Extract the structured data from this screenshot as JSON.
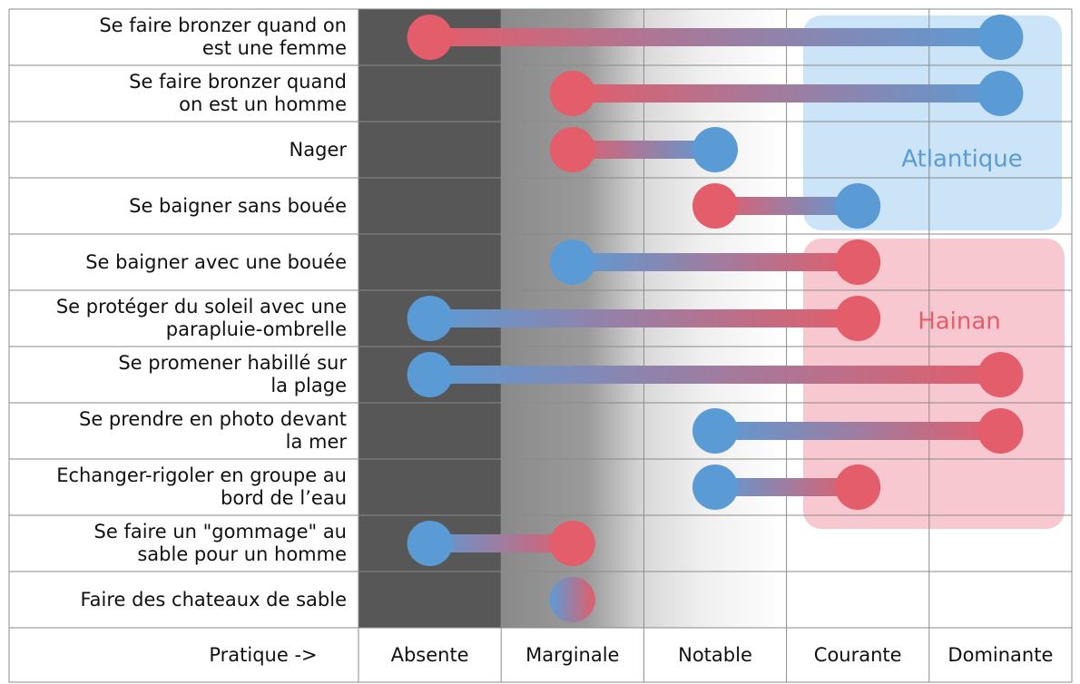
{
  "chart_data": {
    "type": "dumbbell",
    "x_label": "Pratique ->",
    "levels": [
      "Absente",
      "Marginale",
      "Notable",
      "Courante",
      "Dominante"
    ],
    "categories": [
      "Se faire bronzer quand on\nest une femme",
      "Se faire bronzer quand\non est un homme",
      "Nager",
      "Se baigner sans bouée",
      "Se baigner avec une bouée",
      "Se protéger du soleil avec une\nparapluie-ombrelle",
      "Se promener habillé sur\nla plage",
      "Se prendre en photo devant\nla mer",
      "Echanger-rigoler en groupe au\nbord de l’eau",
      "Se faire un \"gommage\" au\nsable pour un homme",
      "Faire des chateaux de sable"
    ],
    "series": [
      {
        "name": "Atlantique",
        "color": "#5b9bd5",
        "values": [
          4,
          4,
          2,
          3,
          1,
          0,
          0,
          2,
          2,
          0,
          1
        ]
      },
      {
        "name": "Hainan",
        "color": "#e35d6a",
        "values": [
          0,
          1,
          1,
          2,
          3,
          3,
          4,
          4,
          3,
          1,
          1
        ]
      }
    ]
  }
}
